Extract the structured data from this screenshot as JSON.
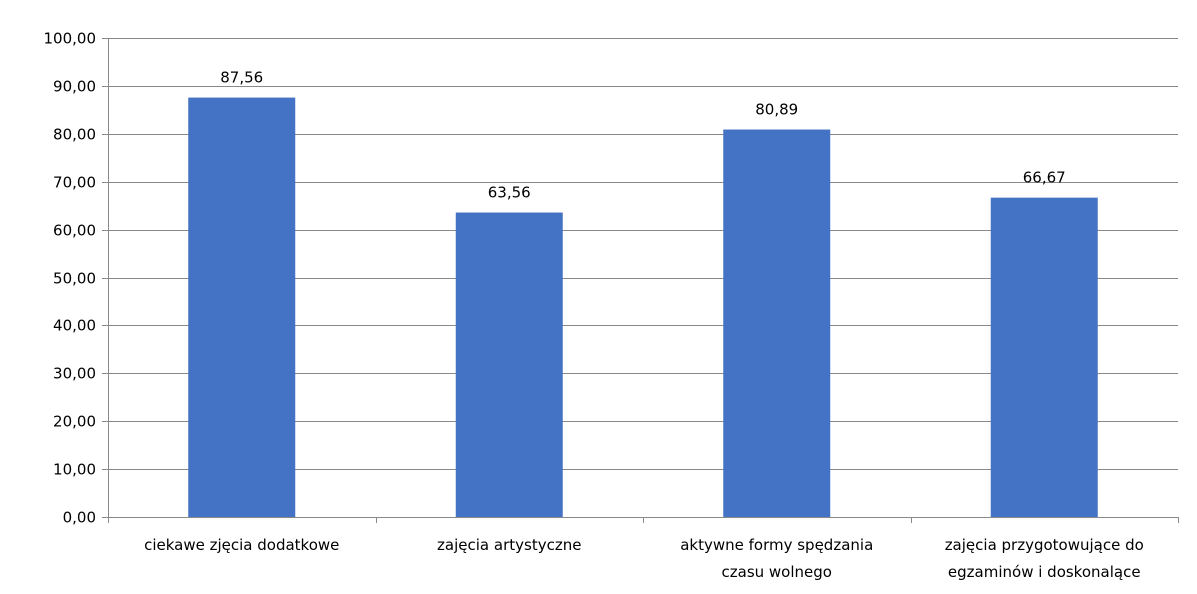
{
  "chart_data": {
    "type": "bar",
    "categories": [
      [
        "ciekawe zjęcia dodatkowe"
      ],
      [
        "zajęcia artystyczne"
      ],
      [
        "aktywne formy spędzania",
        "czasu wolnego"
      ],
      [
        "zajęcia przygotowujące do",
        "egzaminów i doskonalące"
      ]
    ],
    "values": [
      87.56,
      63.56,
      80.89,
      66.67
    ],
    "data_labels": [
      "87,56",
      "63,56",
      "80,89",
      "66,67"
    ],
    "ylim": [
      0,
      100
    ],
    "yticks": [
      0,
      10,
      20,
      30,
      40,
      50,
      60,
      70,
      80,
      90,
      100
    ],
    "ytick_labels": [
      "0,00",
      "10,00",
      "20,00",
      "30,00",
      "40,00",
      "50,00",
      "60,00",
      "70,00",
      "80,00",
      "90,00",
      "100,00"
    ],
    "grid": true,
    "legend": "none",
    "title": "",
    "xlabel": "",
    "ylabel": "",
    "colors": {
      "bar": "#4472C4",
      "grid": "#898989",
      "axis": "#898989",
      "text": "#000000"
    }
  }
}
